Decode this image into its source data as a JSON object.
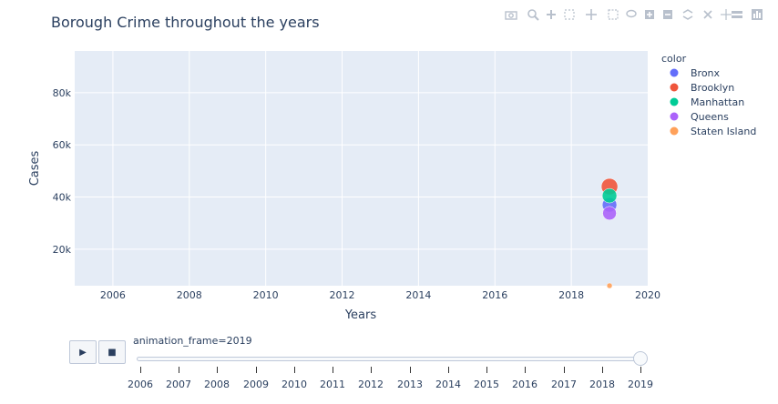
{
  "modebar": {
    "icons": [
      "camera-icon",
      "zoom-icon",
      "plus-icon",
      "minus-icon",
      "pan-icon",
      "box-select-icon",
      "lasso-icon",
      "zoom-in-icon",
      "zoom-out-icon",
      "autoscale-icon",
      "reset-icon",
      "spike-icon",
      "hover-closest-icon",
      "hover-compare-icon",
      "plotly-logo-icon"
    ]
  },
  "chart_data": {
    "type": "scatter",
    "title": "Borough Crime throughout the years",
    "xlabel": "Years",
    "ylabel": "Cases",
    "xlim": [
      2005,
      2020
    ],
    "ylim": [
      6000,
      96000
    ],
    "x_ticks": [
      2006,
      2008,
      2010,
      2012,
      2014,
      2016,
      2018,
      2020
    ],
    "y_ticks": [
      20000,
      40000,
      60000,
      80000
    ],
    "y_tick_labels": [
      "20k",
      "40k",
      "60k",
      "80k"
    ],
    "grid": true,
    "plot_background": "#e5ecf6",
    "legend": {
      "title": "color",
      "placement": "right"
    },
    "series": [
      {
        "name": "Bronx",
        "color": "#636efa",
        "points": [
          {
            "x": 2019,
            "y": 37000,
            "size": 8
          }
        ]
      },
      {
        "name": "Brooklyn",
        "color": "#ef553b",
        "points": [
          {
            "x": 2019,
            "y": 44000,
            "size": 9
          }
        ]
      },
      {
        "name": "Manhattan",
        "color": "#00cc96",
        "points": [
          {
            "x": 2019,
            "y": 40500,
            "size": 8
          }
        ]
      },
      {
        "name": "Queens",
        "color": "#ab63fa",
        "points": [
          {
            "x": 2019,
            "y": 33800,
            "size": 7.5
          }
        ]
      },
      {
        "name": "Staten Island",
        "color": "#ffa15a",
        "points": [
          {
            "x": 2019,
            "y": 6000,
            "size": 3
          }
        ]
      }
    ]
  },
  "animation": {
    "play_label": "▶",
    "stop_label": "■",
    "current_label": "animation_frame=2019",
    "current_value": 2019,
    "steps": [
      "2006",
      "2007",
      "2008",
      "2009",
      "2010",
      "2011",
      "2012",
      "2013",
      "2014",
      "2015",
      "2016",
      "2017",
      "2018",
      "2019"
    ]
  }
}
